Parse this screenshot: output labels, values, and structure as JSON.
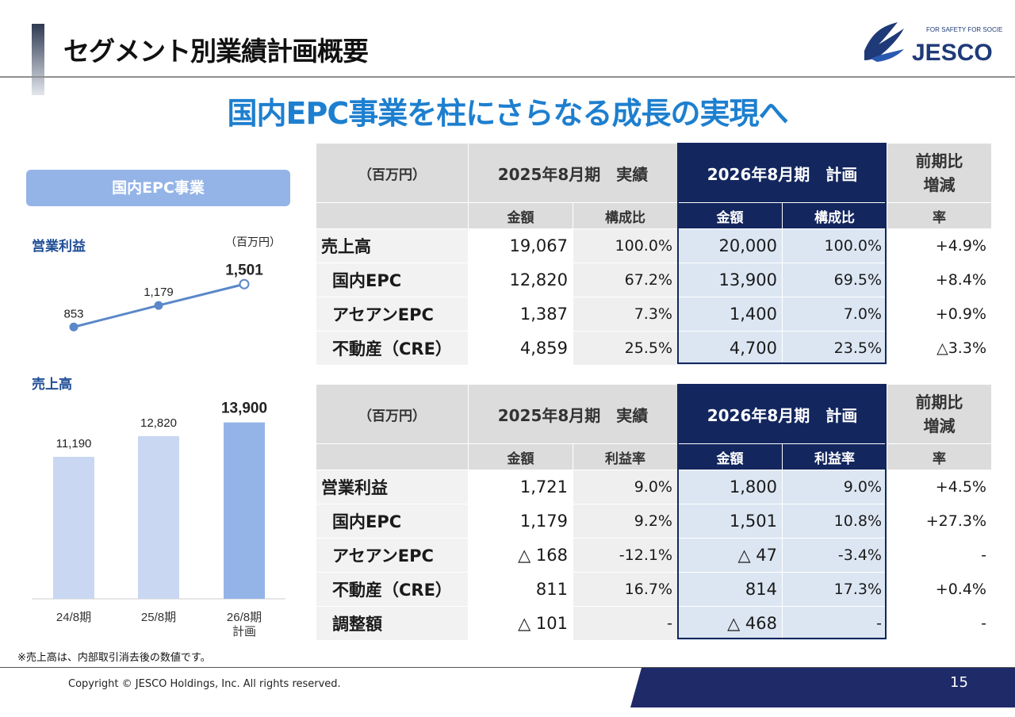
{
  "header": {
    "title": "セグメント別業績計画概要",
    "subtitle": "国内EPC事業を柱にさらなる成長の実現へ",
    "logo_tagline": "FOR SAFETY FOR SOCIETY",
    "logo_text": "JESCO"
  },
  "left_panel": {
    "segment_label": "国内EPC事業",
    "profit_label": "営業利益",
    "unit_label": "（百万円）",
    "sales_label": "売上高",
    "footnote": "※売上高は、内部取引消去後の数値です。"
  },
  "chart_data": [
    {
      "type": "line",
      "title": "営業利益",
      "x": [
        "24/8期",
        "25/8期",
        "26/8期 計画"
      ],
      "values": [
        853,
        1179,
        1501
      ],
      "value_labels": [
        "853",
        "1,179",
        "1,501"
      ],
      "unit": "（百万円）"
    },
    {
      "type": "bar",
      "title": "売上高",
      "categories": [
        "24/8期",
        "25/8期",
        "26/8期 計画"
      ],
      "values": [
        11190,
        12820,
        13900
      ],
      "value_labels": [
        "11,190",
        "12,820",
        "13,900"
      ],
      "category_lines": [
        [
          "24/8期"
        ],
        [
          "25/8期"
        ],
        [
          "26/8期",
          "計画"
        ]
      ]
    }
  ],
  "table_sales": {
    "unit": "（百万円）",
    "col_actual": "2025年8月期　実績",
    "col_plan": "2026年8月期　計画",
    "col_change": "前期比\n増減",
    "sub_amount": "金額",
    "sub_ratio": "構成比",
    "sub_rate": "率",
    "rows": [
      {
        "label": "売上高",
        "a_amt": "19,067",
        "a_ratio": "100.0%",
        "p_amt": "20,000",
        "p_ratio": "100.0%",
        "rate": "+4.9%"
      },
      {
        "label": "国内EPC",
        "a_amt": "12,820",
        "a_ratio": "67.2%",
        "p_amt": "13,900",
        "p_ratio": "69.5%",
        "rate": "+8.4%"
      },
      {
        "label": "アセアンEPC",
        "a_amt": "1,387",
        "a_ratio": "7.3%",
        "p_amt": "1,400",
        "p_ratio": "7.0%",
        "rate": "+0.9%"
      },
      {
        "label": "不動産（CRE）",
        "a_amt": "4,859",
        "a_ratio": "25.5%",
        "p_amt": "4,700",
        "p_ratio": "23.5%",
        "rate": "△3.3%"
      }
    ]
  },
  "table_profit": {
    "unit": "（百万円）",
    "col_actual": "2025年8月期　実績",
    "col_plan": "2026年8月期　計画",
    "col_change": "前期比\n増減",
    "sub_amount": "金額",
    "sub_ratio": "利益率",
    "sub_rate": "率",
    "rows": [
      {
        "label": "営業利益",
        "a_amt": "1,721",
        "a_ratio": "9.0%",
        "p_amt": "1,800",
        "p_ratio": "9.0%",
        "rate": "+4.5%"
      },
      {
        "label": "国内EPC",
        "a_amt": "1,179",
        "a_ratio": "9.2%",
        "p_amt": "1,501",
        "p_ratio": "10.8%",
        "rate": "+27.3%"
      },
      {
        "label": "アセアンEPC",
        "a_amt": "△ 168",
        "a_ratio": "-12.1%",
        "p_amt": "△ 47",
        "p_ratio": "-3.4%",
        "rate": "-"
      },
      {
        "label": "不動産（CRE）",
        "a_amt": "811",
        "a_ratio": "16.7%",
        "p_amt": "814",
        "p_ratio": "17.3%",
        "rate": "+0.4%"
      },
      {
        "label": "調整額",
        "a_amt": "△ 101",
        "a_ratio": "-",
        "p_amt": "△ 468",
        "p_ratio": "-",
        "rate": "-"
      }
    ]
  },
  "footer": {
    "copyright": "Copyright © JESCO Holdings, Inc.  All rights reserved.",
    "page_number": "15"
  },
  "colors": {
    "accent_blue": "#1d7fcf",
    "navy": "#13265e",
    "segment_box": "#94b4e7",
    "line": "#5b88c8",
    "bar_light": "#c9d7f2",
    "bar_plan": "#94b4e7"
  }
}
